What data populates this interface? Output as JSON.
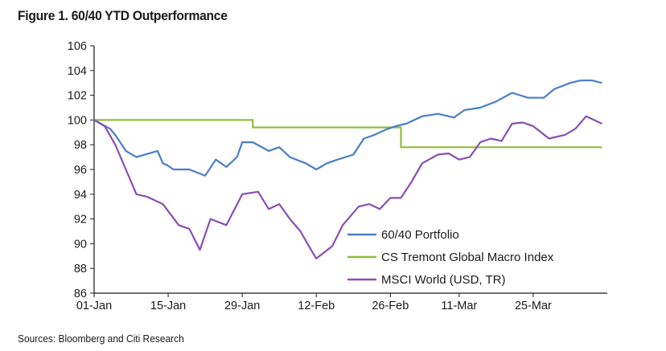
{
  "chart_data": {
    "type": "line",
    "title": "Figure 1. 60/40 YTD Outperformance",
    "source": "Sources: Bloomberg and Citi Research",
    "xlabel": "",
    "ylabel": "",
    "ylim": [
      86,
      106
    ],
    "yticks": [
      86,
      88,
      90,
      92,
      94,
      96,
      98,
      100,
      102,
      104,
      106
    ],
    "xlim": [
      "2013-01-01",
      "2013-04-08"
    ],
    "xticks": [
      "01-Jan",
      "15-Jan",
      "29-Jan",
      "12-Feb",
      "26-Feb",
      "11-Mar",
      "25-Mar"
    ],
    "grid": false,
    "legend_position": "lower-right",
    "series": [
      {
        "name": "60/40 Portfolio",
        "color": "#4a7ec7",
        "x": [
          "2013-01-01",
          "2013-01-04",
          "2013-01-05",
          "2013-01-07",
          "2013-01-09",
          "2013-01-13",
          "2013-01-14",
          "2013-01-15",
          "2013-01-16",
          "2013-01-17",
          "2013-01-19",
          "2013-01-22",
          "2013-01-24",
          "2013-01-26",
          "2013-01-28",
          "2013-01-29",
          "2013-01-31",
          "2013-02-03",
          "2013-02-05",
          "2013-02-07",
          "2013-02-10",
          "2013-02-12",
          "2013-02-14",
          "2013-02-16",
          "2013-02-19",
          "2013-02-21",
          "2013-02-23",
          "2013-02-25",
          "2013-02-27",
          "2013-03-01",
          "2013-03-04",
          "2013-03-07",
          "2013-03-10",
          "2013-03-12",
          "2013-03-15",
          "2013-03-18",
          "2013-03-21",
          "2013-03-24",
          "2013-03-27",
          "2013-03-29",
          "2013-04-01",
          "2013-04-03",
          "2013-04-05",
          "2013-04-07"
        ],
        "y": [
          100.0,
          99.3,
          98.8,
          97.5,
          97.0,
          97.5,
          96.5,
          96.3,
          96.0,
          96.0,
          96.0,
          95.5,
          96.8,
          96.2,
          97.0,
          98.2,
          98.2,
          97.5,
          97.8,
          97.0,
          96.5,
          96.0,
          96.5,
          96.8,
          97.2,
          98.5,
          98.8,
          99.2,
          99.5,
          99.7,
          100.3,
          100.5,
          100.2,
          100.8,
          101.0,
          101.5,
          102.2,
          101.8,
          101.8,
          102.5,
          103.0,
          103.2,
          103.2,
          103.0
        ]
      },
      {
        "name": "CS Tremont Global Macro Index",
        "color": "#8fbd3c",
        "x": [
          "2013-01-01",
          "2013-01-31",
          "2013-01-31",
          "2013-02-28",
          "2013-02-28",
          "2013-04-07"
        ],
        "y": [
          100.0,
          100.0,
          99.4,
          99.4,
          97.8,
          97.8
        ]
      },
      {
        "name": "MSCI World (USD, TR)",
        "color": "#8a4eb3",
        "x": [
          "2013-01-01",
          "2013-01-03",
          "2013-01-05",
          "2013-01-07",
          "2013-01-09",
          "2013-01-11",
          "2013-01-14",
          "2013-01-17",
          "2013-01-19",
          "2013-01-21",
          "2013-01-23",
          "2013-01-26",
          "2013-01-29",
          "2013-02-01",
          "2013-02-03",
          "2013-02-05",
          "2013-02-07",
          "2013-02-09",
          "2013-02-11",
          "2013-02-12",
          "2013-02-15",
          "2013-02-17",
          "2013-02-20",
          "2013-02-22",
          "2013-02-24",
          "2013-02-26",
          "2013-02-28",
          "2013-03-02",
          "2013-03-04",
          "2013-03-07",
          "2013-03-09",
          "2013-03-11",
          "2013-03-13",
          "2013-03-15",
          "2013-03-17",
          "2013-03-19",
          "2013-03-21",
          "2013-03-23",
          "2013-03-25",
          "2013-03-28",
          "2013-03-31",
          "2013-04-02",
          "2013-04-04",
          "2013-04-07"
        ],
        "y": [
          100.0,
          99.5,
          98.0,
          96.0,
          94.0,
          93.8,
          93.2,
          91.5,
          91.2,
          89.5,
          92.0,
          91.5,
          94.0,
          94.2,
          92.8,
          93.2,
          92.0,
          91.0,
          89.5,
          88.8,
          89.8,
          91.5,
          93.0,
          93.2,
          92.8,
          93.7,
          93.7,
          95.0,
          96.5,
          97.2,
          97.3,
          96.8,
          97.0,
          98.2,
          98.5,
          98.3,
          99.7,
          99.8,
          99.5,
          98.5,
          98.8,
          99.3,
          100.3,
          99.7
        ]
      }
    ]
  }
}
